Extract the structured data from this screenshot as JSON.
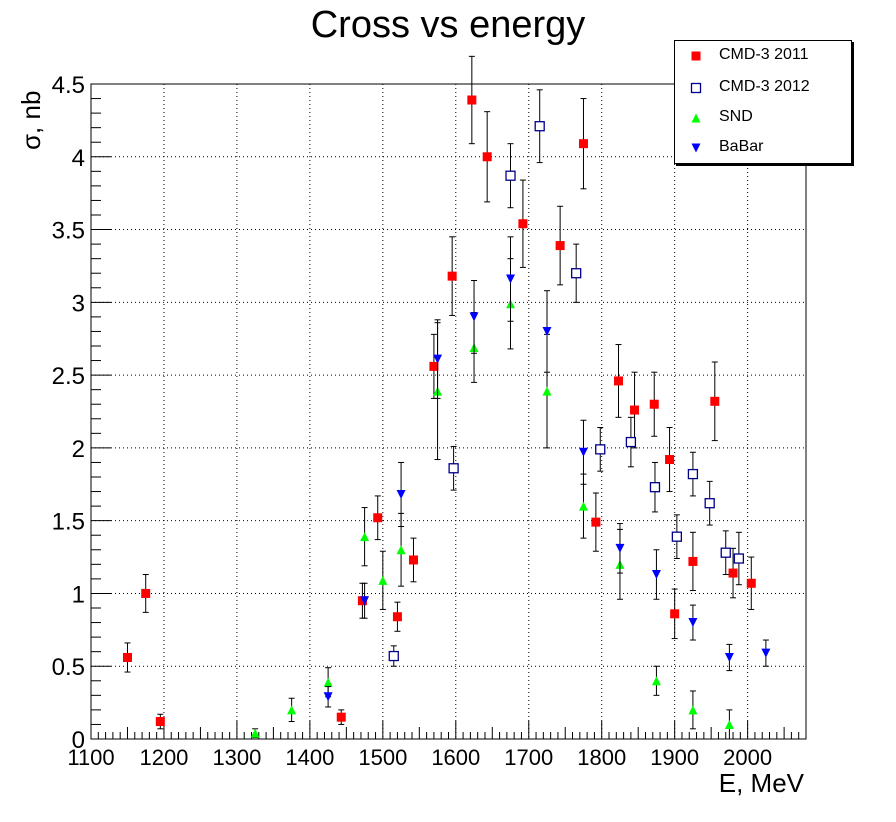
{
  "chart_data": {
    "type": "scatter",
    "title": "Cross vs energy",
    "xlabel": "E, MeV",
    "ylabel": "σ, nb",
    "xlim": [
      1100,
      2080
    ],
    "ylim": [
      0,
      4.5
    ],
    "x_ticks": [
      "1100",
      "1200",
      "1300",
      "1400",
      "1500",
      "1600",
      "1700",
      "1800",
      "1900",
      "2000"
    ],
    "y_ticks": [
      "0",
      "0.5",
      "1",
      "1.5",
      "2",
      "2.5",
      "3",
      "3.5",
      "4",
      "4.5"
    ],
    "grid": true,
    "legend_position": "top-right",
    "series": [
      {
        "name": "CMD-3 2011",
        "marker": "filled-square",
        "color": "#ff0000",
        "points": [
          {
            "x": 1150,
            "y": 0.56,
            "err": 0.1
          },
          {
            "x": 1175,
            "y": 1.0,
            "err": 0.13
          },
          {
            "x": 1195,
            "y": 0.12,
            "err": 0.05
          },
          {
            "x": 1443,
            "y": 0.15,
            "err": 0.05
          },
          {
            "x": 1472,
            "y": 0.95,
            "err": 0.12
          },
          {
            "x": 1493,
            "y": 1.52,
            "err": 0.15
          },
          {
            "x": 1520,
            "y": 0.84,
            "err": 0.1
          },
          {
            "x": 1542,
            "y": 1.23,
            "err": 0.15
          },
          {
            "x": 1570,
            "y": 2.56,
            "err": 0.22
          },
          {
            "x": 1595,
            "y": 3.18,
            "err": 0.27
          },
          {
            "x": 1622,
            "y": 4.39,
            "err": 0.3
          },
          {
            "x": 1643,
            "y": 4.0,
            "err": 0.31
          },
          {
            "x": 1692,
            "y": 3.54,
            "err": 0.3
          },
          {
            "x": 1743,
            "y": 3.39,
            "err": 0.27
          },
          {
            "x": 1775,
            "y": 4.09,
            "err": 0.31
          },
          {
            "x": 1792,
            "y": 1.49,
            "err": 0.2
          },
          {
            "x": 1823,
            "y": 2.46,
            "err": 0.25
          },
          {
            "x": 1845,
            "y": 2.26,
            "err": 0.26
          },
          {
            "x": 1872,
            "y": 2.3,
            "err": 0.22
          },
          {
            "x": 1893,
            "y": 1.92,
            "err": 0.22
          },
          {
            "x": 1900,
            "y": 0.86,
            "err": 0.17
          },
          {
            "x": 1925,
            "y": 1.22,
            "err": 0.2
          },
          {
            "x": 1955,
            "y": 2.32,
            "err": 0.27
          },
          {
            "x": 1980,
            "y": 1.14,
            "err": 0.17
          },
          {
            "x": 2005,
            "y": 1.07,
            "err": 0.18
          }
        ]
      },
      {
        "name": "CMD-3 2012",
        "marker": "open-square",
        "color": "#00008b",
        "points": [
          {
            "x": 1515,
            "y": 0.57,
            "err": 0.07
          },
          {
            "x": 1597,
            "y": 1.86,
            "err": 0.15
          },
          {
            "x": 1675,
            "y": 3.87,
            "err": 0.22
          },
          {
            "x": 1715,
            "y": 4.21,
            "err": 0.25
          },
          {
            "x": 1765,
            "y": 3.2,
            "err": 0.2
          },
          {
            "x": 1798,
            "y": 1.99,
            "err": 0.15
          },
          {
            "x": 1840,
            "y": 2.04,
            "err": 0.17
          },
          {
            "x": 1873,
            "y": 1.73,
            "err": 0.17
          },
          {
            "x": 1903,
            "y": 1.39,
            "err": 0.15
          },
          {
            "x": 1925,
            "y": 1.82,
            "err": 0.15
          },
          {
            "x": 1948,
            "y": 1.62,
            "err": 0.15
          },
          {
            "x": 1970,
            "y": 1.28,
            "err": 0.15
          },
          {
            "x": 1988,
            "y": 1.24,
            "err": 0.18
          }
        ]
      },
      {
        "name": "SND",
        "marker": "filled-triangle-up",
        "color": "#00ff00",
        "points": [
          {
            "x": 1325,
            "y": 0.04,
            "err": 0.03
          },
          {
            "x": 1375,
            "y": 0.2,
            "err": 0.08
          },
          {
            "x": 1425,
            "y": 0.39,
            "err": 0.1
          },
          {
            "x": 1475,
            "y": 1.39,
            "err": 0.2
          },
          {
            "x": 1500,
            "y": 1.09,
            "err": 0.2
          },
          {
            "x": 1525,
            "y": 1.3,
            "err": 0.25
          },
          {
            "x": 1575,
            "y": 2.39,
            "err": 0.47
          },
          {
            "x": 1625,
            "y": 2.69,
            "err": 0.24
          },
          {
            "x": 1675,
            "y": 2.99,
            "err": 0.31
          },
          {
            "x": 1725,
            "y": 2.39,
            "err": 0.39
          },
          {
            "x": 1775,
            "y": 1.6,
            "err": 0.22
          },
          {
            "x": 1825,
            "y": 1.2,
            "err": 0.24
          },
          {
            "x": 1875,
            "y": 0.4,
            "err": 0.1
          },
          {
            "x": 1925,
            "y": 0.2,
            "err": 0.13
          },
          {
            "x": 1975,
            "y": 0.1,
            "err": 0.1
          }
        ]
      },
      {
        "name": "BaBar",
        "marker": "filled-triangle-down",
        "color": "#0000ff",
        "points": [
          {
            "x": 1425,
            "y": 0.29,
            "err": 0.07
          },
          {
            "x": 1475,
            "y": 0.95,
            "err": 0.12
          },
          {
            "x": 1525,
            "y": 1.68,
            "err": 0.22
          },
          {
            "x": 1575,
            "y": 2.61,
            "err": 0.27
          },
          {
            "x": 1625,
            "y": 2.9,
            "err": 0.25
          },
          {
            "x": 1675,
            "y": 3.16,
            "err": 0.29
          },
          {
            "x": 1725,
            "y": 2.8,
            "err": 0.28
          },
          {
            "x": 1775,
            "y": 1.97,
            "err": 0.22
          },
          {
            "x": 1825,
            "y": 1.31,
            "err": 0.17
          },
          {
            "x": 1875,
            "y": 1.13,
            "err": 0.17
          },
          {
            "x": 1925,
            "y": 0.8,
            "err": 0.12
          },
          {
            "x": 1975,
            "y": 0.56,
            "err": 0.09
          },
          {
            "x": 2025,
            "y": 0.59,
            "err": 0.09
          }
        ]
      }
    ]
  }
}
